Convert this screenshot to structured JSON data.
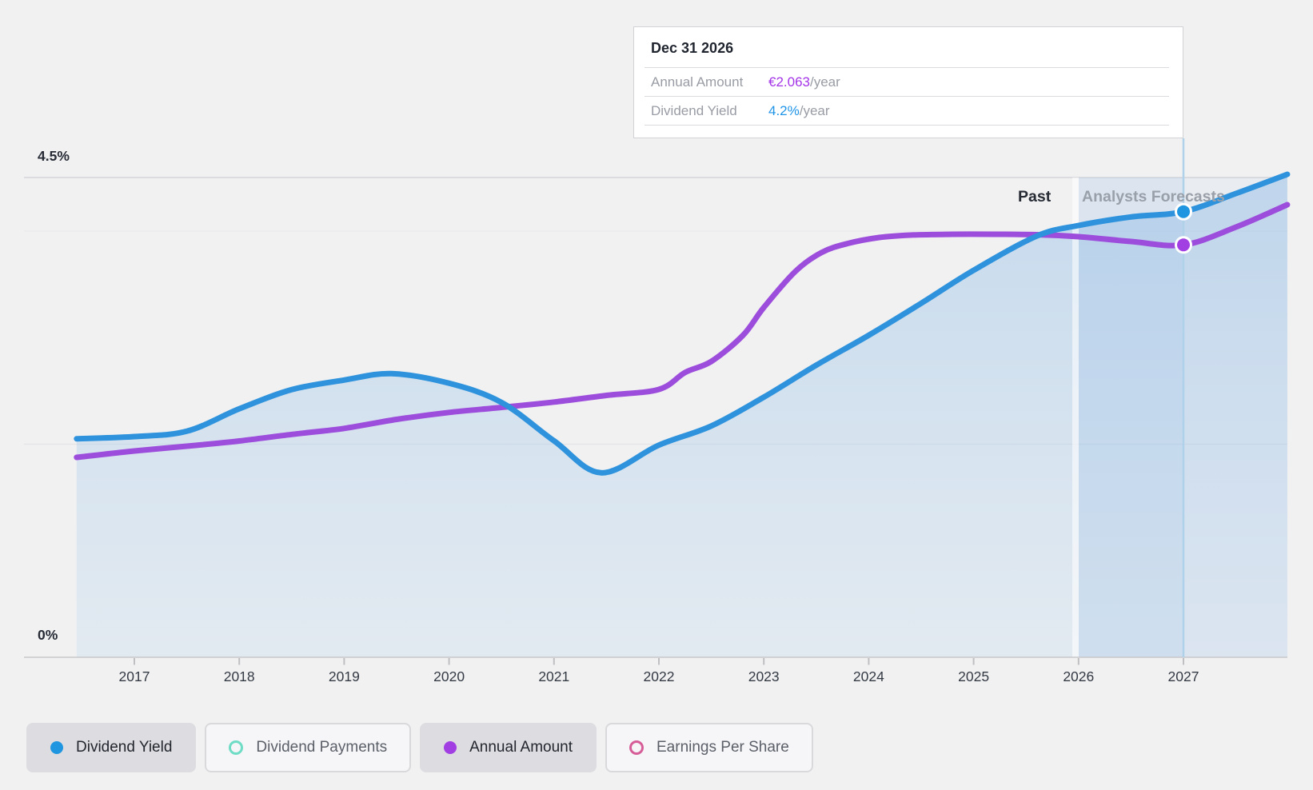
{
  "tooltip": {
    "date": "Dec 31 2026",
    "rows": [
      {
        "label": "Annual Amount",
        "value": "€2.063",
        "suffix": "/year",
        "value_color": "#a434e8"
      },
      {
        "label": "Dividend Yield",
        "value": "4.2%",
        "suffix": "/year",
        "value_color": "#2095e8"
      }
    ]
  },
  "y_axis": {
    "top_label": "4.5%",
    "bottom_label": "0%"
  },
  "zones": {
    "past_label": "Past",
    "forecast_label": "Analysts Forecasts"
  },
  "legend": {
    "items": [
      {
        "label": "Dividend Yield",
        "marker": "filled",
        "color": "#2196e0",
        "selected": true
      },
      {
        "label": "Dividend Payments",
        "marker": "hollow",
        "color": "#6fdcc5",
        "selected": false
      },
      {
        "label": "Annual Amount",
        "marker": "filled",
        "color": "#a13fe3",
        "selected": true
      },
      {
        "label": "Earnings Per Share",
        "marker": "hollow",
        "color": "#d65d97",
        "selected": false
      }
    ]
  },
  "colors": {
    "dividend_yield_line": "#2e93dc",
    "annual_amount_line": "#9c4ddb",
    "area_fill": "#7cb2e3",
    "forecast_band": "#79aee2",
    "crosshair": "#b0d1ea",
    "background": "#f1f1f2"
  },
  "chart_data": {
    "type": "line",
    "title": "Dividend history and forecast",
    "x_axis": {
      "unit": "year",
      "range": [
        2016.45,
        2028.0
      ],
      "ticks": [
        2017,
        2018,
        2019,
        2020,
        2021,
        2022,
        2023,
        2024,
        2025,
        2026,
        2027
      ]
    },
    "y_axes": [
      {
        "id": "yield",
        "unit": "%",
        "min": 0,
        "max": 4.5,
        "top_label": "4.5%",
        "bottom_label": "0%"
      },
      {
        "id": "amount",
        "unit": "EUR",
        "min": 0,
        "max": 2.4
      }
    ],
    "forecast_divider_t": 2026.0,
    "hover_t": 2027.0,
    "grid": {
      "yield_lines": [
        4.5,
        4.0,
        2.0,
        0.0
      ]
    },
    "legend_position": "bottom",
    "series": [
      {
        "name": "Dividend Yield",
        "axis": "yield",
        "color": "#2e93dc",
        "has_area_fill": true,
        "marker": {
          "t": 2027.0,
          "v": 4.18,
          "display": "4.2%/year"
        },
        "points": [
          [
            2016.45,
            2.05
          ],
          [
            2017.0,
            2.07
          ],
          [
            2017.5,
            2.12
          ],
          [
            2018.0,
            2.33
          ],
          [
            2018.5,
            2.51
          ],
          [
            2019.0,
            2.6
          ],
          [
            2019.45,
            2.66
          ],
          [
            2020.0,
            2.57
          ],
          [
            2020.5,
            2.39
          ],
          [
            2021.0,
            2.03
          ],
          [
            2021.45,
            1.73
          ],
          [
            2022.0,
            1.99
          ],
          [
            2022.5,
            2.17
          ],
          [
            2023.0,
            2.44
          ],
          [
            2023.5,
            2.74
          ],
          [
            2024.0,
            3.02
          ],
          [
            2024.5,
            3.32
          ],
          [
            2025.0,
            3.63
          ],
          [
            2025.6,
            3.95
          ],
          [
            2026.0,
            4.05
          ],
          [
            2026.5,
            4.13
          ],
          [
            2027.0,
            4.18
          ],
          [
            2027.5,
            4.35
          ],
          [
            2027.99,
            4.53
          ]
        ]
      },
      {
        "name": "Annual Amount",
        "axis": "amount",
        "color": "#9c4ddb",
        "has_area_fill": false,
        "marker": {
          "t": 2027.0,
          "v": 2.063,
          "display": "€2.063/year"
        },
        "points": [
          [
            2016.45,
            1.0
          ],
          [
            2017.0,
            1.032
          ],
          [
            2017.5,
            1.056
          ],
          [
            2018.0,
            1.082
          ],
          [
            2018.5,
            1.115
          ],
          [
            2019.0,
            1.145
          ],
          [
            2019.5,
            1.19
          ],
          [
            2020.0,
            1.225
          ],
          [
            2020.5,
            1.25
          ],
          [
            2021.0,
            1.277
          ],
          [
            2021.5,
            1.31
          ],
          [
            2022.0,
            1.34
          ],
          [
            2022.25,
            1.425
          ],
          [
            2022.5,
            1.48
          ],
          [
            2022.8,
            1.61
          ],
          [
            2023.0,
            1.75
          ],
          [
            2023.3,
            1.93
          ],
          [
            2023.55,
            2.025
          ],
          [
            2023.8,
            2.07
          ],
          [
            2024.1,
            2.1
          ],
          [
            2024.4,
            2.112
          ],
          [
            2024.8,
            2.116
          ],
          [
            2025.2,
            2.116
          ],
          [
            2025.6,
            2.114
          ],
          [
            2026.0,
            2.104
          ],
          [
            2026.5,
            2.08
          ],
          [
            2027.0,
            2.063
          ],
          [
            2027.5,
            2.152
          ],
          [
            2027.99,
            2.264
          ]
        ]
      }
    ]
  }
}
